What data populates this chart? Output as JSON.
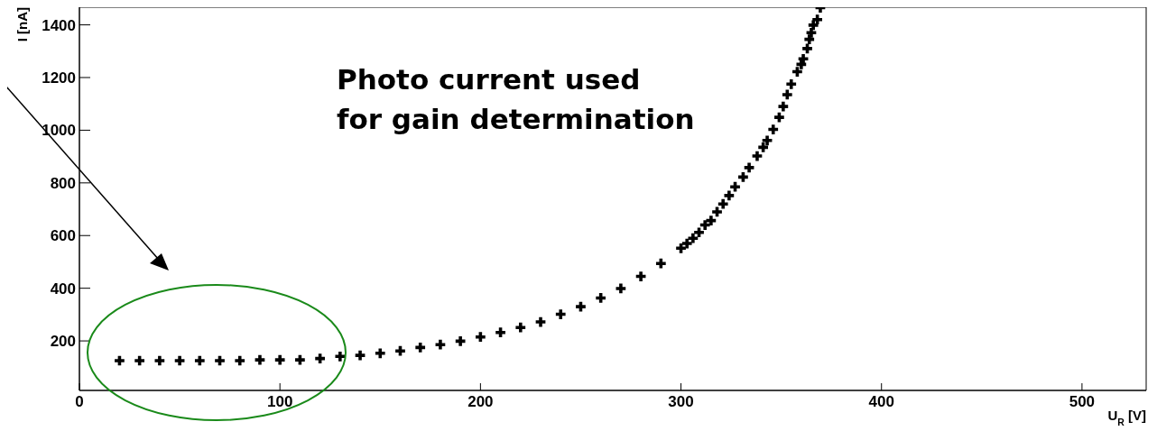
{
  "chart_data": {
    "type": "scatter",
    "xlabel": "U$_{R}$ [V]",
    "ylabel": "I [nA]",
    "annotations": [
      "Photo current used\nfor gain determination"
    ],
    "x": [
      20,
      30,
      40,
      50,
      60,
      70,
      80,
      90,
      100,
      110,
      120,
      130,
      140,
      150,
      160,
      170,
      180,
      190,
      200,
      210,
      220,
      230,
      240,
      250,
      260,
      270,
      280,
      290,
      300,
      303,
      306,
      309,
      312,
      315,
      318,
      321,
      324,
      327,
      331,
      334,
      338,
      341,
      343,
      346,
      349,
      351,
      353,
      355,
      358,
      360,
      361,
      363,
      364,
      365,
      366,
      368,
      369.5
    ],
    "series": [
      {
        "color": "#000000",
        "values": [
          125,
          125,
          125,
          125,
          125,
          125,
          125,
          128,
          128,
          128,
          133,
          141,
          145,
          153,
          162,
          175,
          186,
          199,
          215,
          232,
          251,
          272,
          301,
          330,
          363,
          399,
          445,
          494,
          552,
          570,
          590,
          612,
          640,
          657,
          690,
          720,
          752,
          785,
          822,
          858,
          902,
          935,
          961,
          1003,
          1049,
          1090,
          1135,
          1175,
          1222,
          1250,
          1271,
          1310,
          1345,
          1370,
          1399,
          1420,
          1465
        ]
      }
    ],
    "xlim": [
      0,
      532
    ],
    "ylim": [
      12,
      1467
    ],
    "xticks": [
      0,
      100,
      200,
      300,
      400,
      500
    ],
    "yticks": [
      200,
      400,
      600,
      800,
      1000,
      1200,
      1400
    ],
    "marker": "cross"
  }
}
